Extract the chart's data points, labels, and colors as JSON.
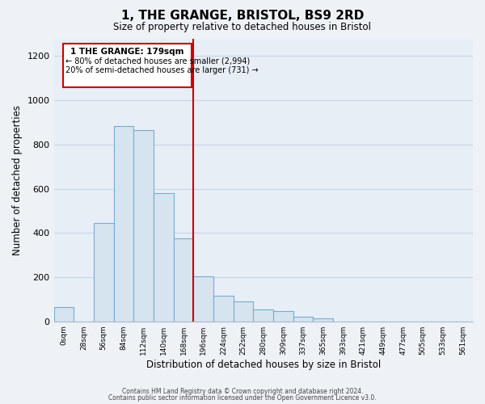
{
  "title": "1, THE GRANGE, BRISTOL, BS9 2RD",
  "subtitle": "Size of property relative to detached houses in Bristol",
  "xlabel": "Distribution of detached houses by size in Bristol",
  "ylabel": "Number of detached properties",
  "bar_color": "#d6e4f0",
  "bar_edge_color": "#7aabcf",
  "bin_labels": [
    "0sqm",
    "28sqm",
    "56sqm",
    "84sqm",
    "112sqm",
    "140sqm",
    "168sqm",
    "196sqm",
    "224sqm",
    "252sqm",
    "280sqm",
    "309sqm",
    "337sqm",
    "365sqm",
    "393sqm",
    "421sqm",
    "449sqm",
    "477sqm",
    "505sqm",
    "533sqm",
    "561sqm"
  ],
  "bar_heights": [
    65,
    0,
    445,
    885,
    865,
    580,
    375,
    205,
    115,
    90,
    55,
    45,
    20,
    15,
    0,
    0,
    0,
    0,
    0,
    0,
    0
  ],
  "red_line_bin": 7,
  "annotation_title": "1 THE GRANGE: 179sqm",
  "annotation_line1": "← 80% of detached houses are smaller (2,994)",
  "annotation_line2": "20% of semi-detached houses are larger (731) →",
  "ylim": [
    0,
    1280
  ],
  "yticks": [
    0,
    200,
    400,
    600,
    800,
    1000,
    1200
  ],
  "footnote1": "Contains HM Land Registry data © Crown copyright and database right 2024.",
  "footnote2": "Contains public sector information licensed under the Open Government Licence v3.0.",
  "background_color": "#eef2f7",
  "plot_bg_color": "#e8eef5",
  "grid_color": "#c5d5e5",
  "red_line_color": "#cc0000",
  "annotation_box_color": "#ffffff",
  "annotation_box_edge_color": "#cc0000"
}
